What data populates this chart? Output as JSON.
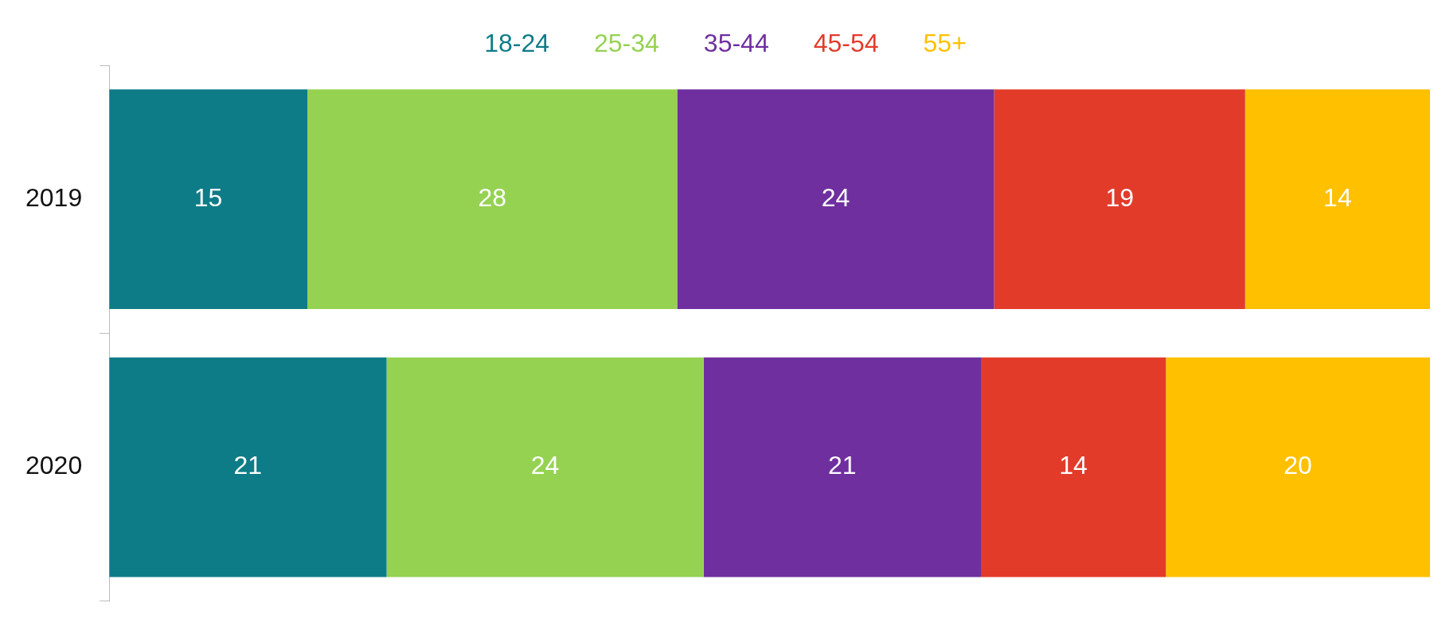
{
  "chart_data": {
    "type": "bar",
    "orientation": "horizontal",
    "stacked": true,
    "categories": [
      "2019",
      "2020"
    ],
    "series": [
      {
        "name": "18-24",
        "color": "#0e7c87",
        "values": [
          15,
          21
        ]
      },
      {
        "name": "25-34",
        "color": "#95d251",
        "values": [
          28,
          24
        ]
      },
      {
        "name": "35-44",
        "color": "#6f2f9f",
        "values": [
          24,
          21
        ]
      },
      {
        "name": "45-54",
        "color": "#e33b2a",
        "values": [
          19,
          14
        ]
      },
      {
        "name": "55+",
        "color": "#ffc000",
        "values": [
          14,
          20
        ]
      }
    ],
    "xlim": [
      0,
      100
    ],
    "tick_labels": "y",
    "data_labels": true,
    "legend": "top"
  }
}
